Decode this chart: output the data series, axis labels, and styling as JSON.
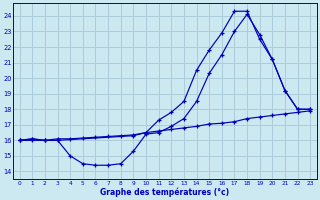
{
  "title": "Graphe des températures (°c)",
  "bg_color": "#cce8f0",
  "grid_color": "#aaccd8",
  "line_color": "#0000bb",
  "xlim": [
    -0.5,
    23.5
  ],
  "ylim": [
    13.5,
    24.8
  ],
  "yticks": [
    14,
    15,
    16,
    17,
    18,
    19,
    20,
    21,
    22,
    23,
    24
  ],
  "xticks": [
    0,
    1,
    2,
    3,
    4,
    5,
    6,
    7,
    8,
    9,
    10,
    11,
    12,
    13,
    14,
    15,
    16,
    17,
    18,
    19,
    20,
    21,
    22,
    23
  ],
  "series1_x": [
    0,
    1,
    2,
    3,
    9,
    10,
    11,
    12,
    13,
    14,
    15,
    16,
    17,
    18,
    19,
    20,
    21,
    22,
    23
  ],
  "series1_y": [
    16,
    16,
    16,
    16,
    16.3,
    16.5,
    17.3,
    17.8,
    18.5,
    20.5,
    21.8,
    22.9,
    24.3,
    24.3,
    22.5,
    21.2,
    19.2,
    18.0,
    18.0
  ],
  "series2_x": [
    0,
    1,
    2,
    3,
    4,
    5,
    6,
    7,
    8,
    9,
    10,
    11,
    12,
    13,
    14,
    15,
    16,
    17,
    18,
    19,
    20,
    21,
    22,
    23
  ],
  "series2_y": [
    16,
    16.1,
    16,
    16,
    15.0,
    14.5,
    14.4,
    14.4,
    14.5,
    15.3,
    16.4,
    16.5,
    16.9,
    17.4,
    18.5,
    20.3,
    21.5,
    23.0,
    24.1,
    22.8,
    21.2,
    19.2,
    18.0,
    18.0
  ],
  "series3_x": [
    0,
    1,
    2,
    3,
    4,
    5,
    6,
    7,
    8,
    9,
    10,
    11,
    12,
    13,
    14,
    15,
    16,
    17,
    18,
    19,
    20,
    21,
    22,
    23
  ],
  "series3_y": [
    16,
    16.1,
    16,
    16.1,
    16.1,
    16.15,
    16.2,
    16.25,
    16.3,
    16.35,
    16.5,
    16.6,
    16.7,
    16.8,
    16.9,
    17.05,
    17.1,
    17.2,
    17.4,
    17.5,
    17.6,
    17.7,
    17.8,
    17.9
  ]
}
